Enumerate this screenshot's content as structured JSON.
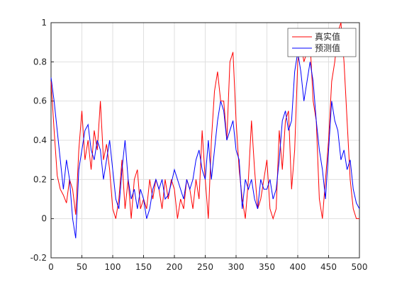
{
  "chart_data": {
    "type": "line",
    "x": [
      0,
      5,
      10,
      15,
      20,
      25,
      30,
      35,
      40,
      45,
      50,
      55,
      60,
      65,
      70,
      75,
      80,
      85,
      90,
      95,
      100,
      105,
      110,
      115,
      120,
      125,
      130,
      135,
      140,
      145,
      150,
      155,
      160,
      165,
      170,
      175,
      180,
      185,
      190,
      195,
      200,
      205,
      210,
      215,
      220,
      225,
      230,
      235,
      240,
      245,
      250,
      255,
      260,
      265,
      270,
      275,
      280,
      285,
      290,
      295,
      300,
      305,
      310,
      315,
      320,
      325,
      330,
      335,
      340,
      345,
      350,
      355,
      360,
      365,
      370,
      375,
      380,
      385,
      390,
      395,
      400,
      405,
      410,
      415,
      420,
      425,
      430,
      435,
      440,
      445,
      450,
      455,
      460,
      465,
      470,
      475,
      480,
      485,
      490,
      495,
      500
    ],
    "series": [
      {
        "name": "真实值",
        "color": "#ff0000",
        "values": [
          0.7,
          0.45,
          0.22,
          0.15,
          0.12,
          0.08,
          0.2,
          0.15,
          0.02,
          0.35,
          0.55,
          0.3,
          0.4,
          0.25,
          0.45,
          0.35,
          0.6,
          0.3,
          0.38,
          0.25,
          0.05,
          0.0,
          0.1,
          0.3,
          0.05,
          0.2,
          0.0,
          0.2,
          0.25,
          0.05,
          0.1,
          0.05,
          0.2,
          0.1,
          0.2,
          0.15,
          0.05,
          0.2,
          0.1,
          0.2,
          0.15,
          0.0,
          0.1,
          0.05,
          0.2,
          0.15,
          0.05,
          0.2,
          0.1,
          0.45,
          0.2,
          0.0,
          0.4,
          0.65,
          0.75,
          0.6,
          0.6,
          0.4,
          0.8,
          0.85,
          0.5,
          0.25,
          0.1,
          0.0,
          0.2,
          0.5,
          0.25,
          0.05,
          0.1,
          0.2,
          0.3,
          0.05,
          0.0,
          0.05,
          0.45,
          0.25,
          0.5,
          0.55,
          0.15,
          0.35,
          0.8,
          0.9,
          0.8,
          0.85,
          0.9,
          0.6,
          0.5,
          0.1,
          0.0,
          0.2,
          0.4,
          0.7,
          0.8,
          0.95,
          1.0,
          0.8,
          0.5,
          0.2,
          0.05,
          0.0,
          0.0
        ]
      },
      {
        "name": "预测值",
        "color": "#0000ff",
        "values": [
          0.72,
          0.6,
          0.45,
          0.3,
          0.15,
          0.3,
          0.2,
          0.0,
          -0.1,
          0.25,
          0.35,
          0.45,
          0.48,
          0.35,
          0.3,
          0.4,
          0.35,
          0.2,
          0.3,
          0.4,
          0.25,
          0.1,
          0.05,
          0.25,
          0.4,
          0.2,
          0.1,
          0.15,
          0.05,
          0.15,
          0.1,
          0.0,
          0.05,
          0.15,
          0.2,
          0.15,
          0.2,
          0.1,
          0.12,
          0.18,
          0.25,
          0.2,
          0.15,
          0.1,
          0.2,
          0.15,
          0.2,
          0.3,
          0.35,
          0.25,
          0.2,
          0.4,
          0.2,
          0.35,
          0.5,
          0.6,
          0.55,
          0.4,
          0.45,
          0.5,
          0.35,
          0.3,
          0.05,
          0.2,
          0.15,
          0.2,
          0.1,
          0.05,
          0.2,
          0.15,
          0.15,
          0.2,
          0.1,
          0.15,
          0.3,
          0.5,
          0.55,
          0.45,
          0.5,
          0.75,
          0.85,
          0.75,
          0.6,
          0.7,
          0.8,
          0.7,
          0.5,
          0.35,
          0.25,
          0.1,
          0.35,
          0.6,
          0.5,
          0.45,
          0.3,
          0.35,
          0.25,
          0.3,
          0.15,
          0.08,
          0.05
        ]
      }
    ],
    "xlim": [
      0,
      500
    ],
    "xticks": [
      0,
      50,
      100,
      150,
      200,
      250,
      300,
      350,
      400,
      450,
      500
    ],
    "ylim": [
      -0.2,
      1
    ],
    "yticks": [
      -0.2,
      0,
      0.2,
      0.4,
      0.6,
      0.8,
      1
    ],
    "grid": true,
    "legend": "northeast"
  }
}
